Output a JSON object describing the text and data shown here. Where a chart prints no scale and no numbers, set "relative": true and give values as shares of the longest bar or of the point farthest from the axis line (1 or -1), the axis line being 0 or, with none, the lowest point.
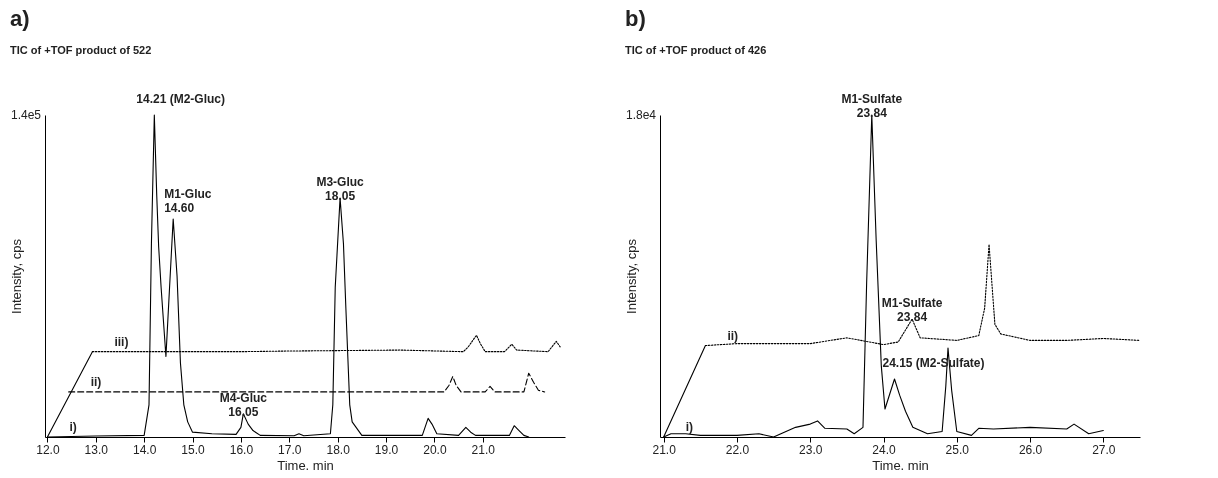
{
  "chart_data": [
    {
      "type": "line",
      "title": "a)",
      "subtitle": "TIC of +TOF product of 522",
      "xlabel": "Time. min",
      "ylabel": "Intensity, cps",
      "relative": true,
      "xlim": [
        11.95,
        22.7
      ],
      "xticks": [
        {
          "value": 12,
          "label": "12.0"
        },
        {
          "value": 13,
          "label": "13.0"
        },
        {
          "value": 14,
          "label": "14.0"
        },
        {
          "value": 15,
          "label": "15.0"
        },
        {
          "value": 16,
          "label": "16.0"
        },
        {
          "value": 17,
          "label": "17.0"
        },
        {
          "value": 18,
          "label": "18.0"
        },
        {
          "value": 19,
          "label": "19.0"
        },
        {
          "value": 20,
          "label": "20.0"
        },
        {
          "value": 21,
          "label": "21.0"
        }
      ],
      "series": [
        {
          "name": "i)",
          "color": "#000000",
          "line_style": "solid",
          "x": [
            12.0,
            13.0,
            14.0,
            14.1,
            14.15,
            14.21,
            14.26,
            14.3,
            14.35,
            14.45,
            14.52,
            14.6,
            14.68,
            14.75,
            14.82,
            14.9,
            15.0,
            15.4,
            15.9,
            16.0,
            16.05,
            16.15,
            16.25,
            16.4,
            17.1,
            17.2,
            17.3,
            17.85,
            17.9,
            17.95,
            18.05,
            18.12,
            18.17,
            18.25,
            18.3,
            18.5,
            19.75,
            19.87,
            19.95,
            20.05,
            20.5,
            20.65,
            20.75,
            20.85,
            21.55,
            21.65,
            21.75,
            21.85,
            21.95
          ],
          "values": [
            0,
            0.003,
            0.005,
            0.1,
            0.6,
            1.0,
            0.75,
            0.59,
            0.465,
            0.25,
            0.45,
            0.677,
            0.5,
            0.23,
            0.1,
            0.047,
            0.015,
            0.01,
            0.008,
            0.03,
            0.072,
            0.04,
            0.02,
            0.005,
            0.004,
            0.01,
            0.004,
            0.01,
            0.1,
            0.465,
            0.742,
            0.6,
            0.4,
            0.1,
            0.047,
            0.005,
            0.005,
            0.058,
            0.04,
            0.01,
            0.005,
            0.03,
            0.015,
            0.005,
            0.005,
            0.035,
            0.02,
            0.005,
            0
          ]
        },
        {
          "name": "ii)",
          "color": "#000000",
          "line_style": "dashed",
          "x": [
            12.44,
            16.0,
            18.0,
            20.2,
            20.3,
            20.38,
            20.45,
            20.55,
            21.05,
            21.15,
            21.25,
            21.85,
            21.95,
            22.05,
            22.15,
            22.28
          ],
          "values": [
            0.14,
            0.14,
            0.14,
            0.14,
            0.16,
            0.188,
            0.16,
            0.14,
            0.14,
            0.157,
            0.14,
            0.14,
            0.198,
            0.17,
            0.145,
            0.14
          ]
        },
        {
          "name": "iii)",
          "color": "#000000",
          "line_style": "dotted",
          "x": [
            12.93,
            16.0,
            17.0,
            19.3,
            20.6,
            20.7,
            20.87,
            20.95,
            21.05,
            21.45,
            21.6,
            21.7,
            22.35,
            22.52,
            22.6
          ],
          "values": [
            0.265,
            0.265,
            0.267,
            0.27,
            0.265,
            0.28,
            0.316,
            0.29,
            0.265,
            0.265,
            0.288,
            0.27,
            0.265,
            0.297,
            0.28
          ]
        },
        {
          "color": "#000000",
          "line_style": "solid",
          "x": [
            12.0,
            12.93
          ],
          "values": [
            0,
            0.265
          ]
        }
      ],
      "annotations": [
        "1.4e5",
        {
          "text": "14.21 (M2-Gluc)",
          "x": 14.21,
          "y": 1.0
        },
        {
          "text": "M1-Gluc\n14.60",
          "x": 14.6,
          "y": 0.677
        },
        {
          "text": "M4-Gluc\n16.05",
          "x": 16.05,
          "y": 0.072
        },
        {
          "text": "M3-Gluc\n18.05",
          "x": 18.05,
          "y": 0.742
        }
      ]
    },
    {
      "type": "line",
      "title": "b)",
      "subtitle": "TIC of +TOF product of 426",
      "xlabel": "Time. min",
      "ylabel": "Intensity, cps",
      "relative": true,
      "xlim": [
        20.95,
        27.5
      ],
      "xticks": [
        {
          "value": 21,
          "label": "21.0"
        },
        {
          "value": 22,
          "label": "22.0"
        },
        {
          "value": 23,
          "label": "23.0"
        },
        {
          "value": 24,
          "label": "24.0"
        },
        {
          "value": 25,
          "label": "25.0"
        },
        {
          "value": 26,
          "label": "26.0"
        },
        {
          "value": 27,
          "label": "27.0"
        }
      ],
      "series": [
        {
          "name": "i)",
          "color": "#000000",
          "line_style": "solid",
          "x": [
            21.0,
            21.1,
            21.3,
            21.5,
            22.0,
            22.3,
            22.5,
            22.8,
            23.0,
            23.1,
            23.2,
            23.5,
            23.6,
            23.72,
            23.77,
            23.84,
            23.9,
            23.97,
            24.02,
            24.15,
            24.22,
            24.3,
            24.4,
            24.6,
            24.8,
            24.85,
            24.88,
            24.93,
            25.0,
            25.2,
            25.3,
            25.5,
            26.0,
            26.5,
            26.6,
            26.8,
            27.0
          ],
          "values": [
            0,
            0.01,
            0.01,
            0.005,
            0.005,
            0.01,
            0,
            0.03,
            0.04,
            0.05,
            0.027,
            0.025,
            0.01,
            0.03,
            0.48,
            1.0,
            0.61,
            0.22,
            0.087,
            0.18,
            0.13,
            0.08,
            0.03,
            0.01,
            0.017,
            0.158,
            0.276,
            0.145,
            0.017,
            0.005,
            0.027,
            0.025,
            0.03,
            0.025,
            0.04,
            0.01,
            0.02
          ]
        },
        {
          "name": "ii)",
          "color": "#000000",
          "line_style": "dotted",
          "x": [
            21.57,
            22.0,
            23.0,
            23.5,
            24.0,
            24.2,
            24.39,
            24.5,
            25.0,
            25.3,
            25.38,
            25.44,
            25.52,
            25.6,
            26.0,
            26.5,
            27.0,
            27.5
          ],
          "values": [
            0.284,
            0.29,
            0.29,
            0.308,
            0.287,
            0.295,
            0.366,
            0.308,
            0.3,
            0.315,
            0.4,
            0.598,
            0.35,
            0.32,
            0.3,
            0.3,
            0.306,
            0.3
          ]
        },
        {
          "color": "#000000",
          "line_style": "solid",
          "x": [
            21.0,
            21.57
          ],
          "values": [
            0,
            0.284
          ]
        }
      ],
      "annotations": [
        "1.8e4",
        {
          "text": "M1-Sulfate\n23.84",
          "x": 23.84,
          "y": 1.0
        },
        {
          "text": "M1-Sulfate\n23.84",
          "x": 24.39,
          "y": 0.366
        },
        {
          "text": "24.15 (M2-Sulfate)",
          "x": 24.15,
          "y": 0.18
        }
      ]
    }
  ]
}
